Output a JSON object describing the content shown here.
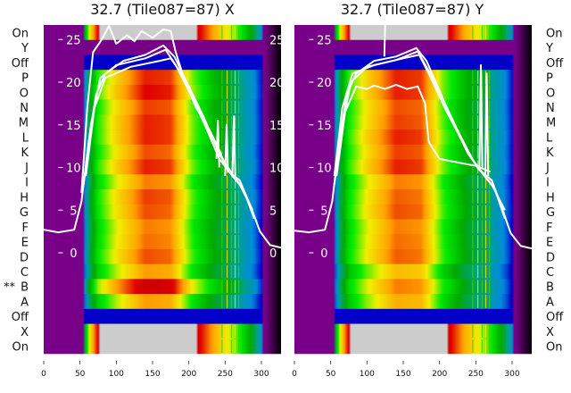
{
  "chart_data": [
    {
      "type": "heatmap",
      "title": "32.7 (Tile087=87) X",
      "row_labels": [
        "On",
        "Y",
        "Off",
        "P",
        "O",
        "N",
        "M",
        "L",
        "K",
        "J",
        "I",
        "H",
        "G",
        "F",
        "E",
        "D",
        "C",
        "B",
        "A",
        "Off",
        "X",
        "On"
      ],
      "row_markers": {
        "B": "**"
      },
      "row_intensity": [
        1.35,
        0.0,
        0.2,
        0.9,
        0.92,
        0.88,
        0.9,
        0.9,
        0.87,
        0.9,
        0.84,
        0.88,
        0.87,
        0.84,
        0.85,
        0.87,
        0.82,
        0.97,
        0.82,
        0.2,
        1.35,
        1.35
      ],
      "xticks": [
        0,
        50,
        100,
        150,
        200,
        250,
        300
      ],
      "xlim": [
        0,
        327
      ],
      "yticks": [
        0,
        5,
        10,
        15,
        20,
        25
      ],
      "ylim": [
        -11.8,
        26.7
      ],
      "overlay_lines": [
        {
          "name": "profile-1",
          "points": [
            [
              0,
              2.7
            ],
            [
              20,
              2.4
            ],
            [
              42,
              2.7
            ],
            [
              52,
              6
            ],
            [
              62,
              13
            ],
            [
              72,
              18.5
            ],
            [
              85,
              21
            ],
            [
              110,
              22.5
            ],
            [
              140,
              23.2
            ],
            [
              165,
              24.3
            ],
            [
              180,
              23
            ],
            [
              200,
              19.5
            ],
            [
              220,
              16
            ],
            [
              240,
              12
            ],
            [
              255,
              9.5
            ],
            [
              270,
              8.5
            ],
            [
              285,
              5.5
            ],
            [
              298,
              2.5
            ],
            [
              312,
              0.9
            ],
            [
              327,
              0.6
            ]
          ]
        },
        {
          "name": "profile-2",
          "points": [
            [
              55,
              8
            ],
            [
              65,
              15
            ],
            [
              78,
              20.5
            ],
            [
              100,
              22
            ],
            [
              140,
              22.8
            ],
            [
              168,
              23.8
            ],
            [
              182,
              22
            ],
            [
              200,
              19
            ],
            [
              222,
              15
            ],
            [
              242,
              11
            ],
            [
              260,
              9
            ],
            [
              275,
              7.5
            ],
            [
              290,
              4
            ]
          ]
        },
        {
          "name": "profile-3",
          "points": [
            [
              58,
              9
            ],
            [
              70,
              17
            ],
            [
              85,
              20.5
            ],
            [
              120,
              21.8
            ],
            [
              160,
              22.5
            ],
            [
              175,
              22.8
            ],
            [
              190,
              21
            ],
            [
              210,
              17.5
            ],
            [
              232,
              13.5
            ],
            [
              250,
              10.5
            ],
            [
              270,
              8
            ],
            [
              288,
              5
            ]
          ]
        },
        {
          "name": "profile-4",
          "points": [
            [
              52,
              7
            ],
            [
              60,
              17
            ],
            [
              68,
              23.5
            ],
            [
              80,
              25
            ],
            [
              90,
              26.6
            ],
            [
              100,
              24.5
            ],
            [
              115,
              25.5
            ],
            [
              125,
              24.8
            ],
            [
              135,
              26
            ],
            [
              150,
              25.2
            ],
            [
              165,
              26.2
            ],
            [
              175,
              26
            ],
            [
              182,
              23.5
            ],
            [
              195,
              20
            ],
            [
              210,
              17
            ],
            [
              228,
              14.5
            ],
            [
              245,
              11.5
            ]
          ]
        },
        {
          "name": "spike-1",
          "points": [
            [
              238,
              11
            ],
            [
              240,
              15.5
            ],
            [
              242,
              10
            ]
          ]
        },
        {
          "name": "spike-2",
          "points": [
            [
              250,
              9
            ],
            [
              252,
              15
            ],
            [
              254,
              9.5
            ]
          ]
        },
        {
          "name": "spike-3",
          "points": [
            [
              260,
              9
            ],
            [
              262,
              16
            ],
            [
              264,
              9
            ]
          ]
        }
      ]
    },
    {
      "type": "heatmap",
      "title": "32.7 (Tile087=87) Y",
      "row_labels": [
        "On",
        "Y",
        "Off",
        "P",
        "O",
        "N",
        "M",
        "L",
        "K",
        "J",
        "I",
        "H",
        "G",
        "F",
        "E",
        "D",
        "C",
        "B",
        "A",
        "Off",
        "X",
        "On"
      ],
      "row_intensity": [
        1.35,
        0.0,
        0.2,
        0.9,
        0.9,
        0.87,
        0.88,
        0.9,
        0.88,
        0.9,
        0.84,
        0.86,
        0.87,
        0.84,
        0.85,
        0.86,
        0.78,
        0.84,
        0.8,
        0.2,
        1.35,
        1.35
      ],
      "xticks": [
        0,
        50,
        100,
        150,
        200,
        250,
        300
      ],
      "xlim": [
        0,
        327
      ],
      "yticks": [
        0,
        5,
        10,
        15,
        20,
        25
      ],
      "ylim": [
        -11.8,
        26.7
      ],
      "overlay_lines": [
        {
          "name": "profile-1",
          "points": [
            [
              0,
              2.6
            ],
            [
              20,
              2.4
            ],
            [
              42,
              2.7
            ],
            [
              52,
              6
            ],
            [
              62,
              13
            ],
            [
              72,
              18.5
            ],
            [
              85,
              21
            ],
            [
              110,
              22.5
            ],
            [
              140,
              23
            ],
            [
              168,
              24
            ],
            [
              182,
              22.5
            ],
            [
              200,
              19
            ],
            [
              220,
              15
            ],
            [
              240,
              11.5
            ],
            [
              258,
              9.5
            ],
            [
              272,
              8.5
            ],
            [
              285,
              5.5
            ],
            [
              298,
              2.3
            ],
            [
              312,
              0.8
            ],
            [
              327,
              0.5
            ]
          ]
        },
        {
          "name": "profile-2",
          "points": [
            [
              55,
              8
            ],
            [
              66,
              15
            ],
            [
              78,
              20
            ],
            [
              100,
              21.8
            ],
            [
              140,
              22.6
            ],
            [
              170,
              23.6
            ],
            [
              184,
              21.5
            ],
            [
              202,
              18.5
            ],
            [
              224,
              14.5
            ],
            [
              245,
              11
            ],
            [
              262,
              9
            ],
            [
              276,
              7.5
            ],
            [
              290,
              4
            ]
          ]
        },
        {
          "name": "profile-3",
          "points": [
            [
              58,
              9
            ],
            [
              70,
              16.5
            ],
            [
              85,
              19.5
            ],
            [
              100,
              19.2
            ],
            [
              110,
              19.6
            ],
            [
              125,
              19.2
            ],
            [
              140,
              19.7
            ],
            [
              155,
              19.2
            ],
            [
              170,
              19.5
            ],
            [
              180,
              17.5
            ],
            [
              185,
              13
            ],
            [
              200,
              11
            ],
            [
              230,
              10.5
            ],
            [
              250,
              10.2
            ],
            [
              270,
              9.5
            ]
          ]
        },
        {
          "name": "profile-4",
          "points": [
            [
              55,
              9
            ],
            [
              66,
              17
            ],
            [
              80,
              21
            ],
            [
              110,
              22
            ],
            [
              150,
              22.8
            ],
            [
              172,
              23.2
            ],
            [
              188,
              20.5
            ],
            [
              210,
              16.5
            ],
            [
              232,
              13
            ],
            [
              252,
              10
            ],
            [
              272,
              8
            ],
            [
              290,
              5
            ]
          ]
        },
        {
          "name": "spike-1",
          "points": [
            [
              124,
              23
            ],
            [
              125,
              26.7
            ]
          ]
        },
        {
          "name": "spike-2",
          "points": [
            [
              255,
              10
            ],
            [
              257,
              22
            ],
            [
              259,
              10
            ]
          ]
        },
        {
          "name": "spike-3",
          "points": [
            [
              263,
              9
            ],
            [
              265,
              21
            ],
            [
              267,
              9
            ]
          ]
        }
      ]
    }
  ]
}
